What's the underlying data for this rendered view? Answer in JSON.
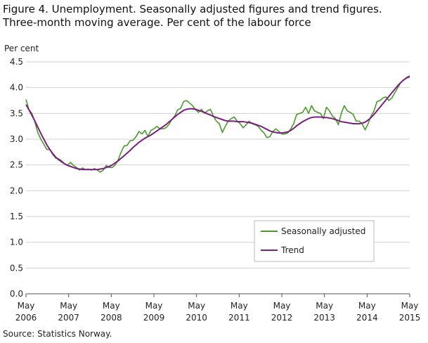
{
  "title_line1": "Figure 4. Unemployment. Seasonally adjusted figures and trend figures.",
  "title_line2": "Three-month moving average. Per cent of the labour force",
  "source": "Source: Statistics Norway.",
  "chart_data": {
    "type": "line",
    "ylabel": "Per cent",
    "ylim": [
      0,
      4.5
    ],
    "yticks": [
      "0.0",
      "0.5",
      "1.0",
      "1.5",
      "2.0",
      "2.5",
      "3.0",
      "3.5",
      "4.0",
      "4.5"
    ],
    "xticks": [
      {
        "month": "May",
        "year": "2006"
      },
      {
        "month": "May",
        "year": "2007"
      },
      {
        "month": "May",
        "year": "2008"
      },
      {
        "month": "May",
        "year": "2009"
      },
      {
        "month": "May",
        "year": "2010"
      },
      {
        "month": "May",
        "year": "2011"
      },
      {
        "month": "May",
        "year": "2012"
      },
      {
        "month": "May",
        "year": "2013"
      },
      {
        "month": "May",
        "year": "2014"
      },
      {
        "month": "May",
        "year": "2015"
      }
    ],
    "x_start": "2006-05",
    "x_end": "2015-05",
    "grid": "horizontal",
    "legend_position": "bottom-right",
    "series": [
      {
        "name": "Seasonally adjusted",
        "color": "#4a9a2a",
        "values": [
          3.77,
          3.57,
          3.5,
          3.33,
          3.12,
          3.0,
          2.9,
          2.8,
          2.8,
          2.7,
          2.63,
          2.62,
          2.58,
          2.52,
          2.5,
          2.55,
          2.49,
          2.45,
          2.4,
          2.44,
          2.41,
          2.42,
          2.4,
          2.43,
          2.4,
          2.36,
          2.4,
          2.49,
          2.45,
          2.45,
          2.5,
          2.6,
          2.75,
          2.87,
          2.88,
          2.97,
          2.98,
          3.05,
          3.15,
          3.1,
          3.17,
          3.05,
          3.17,
          3.2,
          3.25,
          3.2,
          3.2,
          3.22,
          3.28,
          3.38,
          3.45,
          3.57,
          3.6,
          3.73,
          3.75,
          3.7,
          3.65,
          3.57,
          3.52,
          3.58,
          3.5,
          3.55,
          3.58,
          3.45,
          3.35,
          3.3,
          3.13,
          3.25,
          3.35,
          3.4,
          3.43,
          3.35,
          3.3,
          3.22,
          3.28,
          3.35,
          3.3,
          3.28,
          3.25,
          3.18,
          3.12,
          3.03,
          3.05,
          3.15,
          3.2,
          3.15,
          3.1,
          3.1,
          3.12,
          3.2,
          3.3,
          3.48,
          3.5,
          3.52,
          3.62,
          3.5,
          3.65,
          3.55,
          3.52,
          3.5,
          3.4,
          3.62,
          3.55,
          3.45,
          3.4,
          3.28,
          3.5,
          3.65,
          3.55,
          3.52,
          3.48,
          3.35,
          3.35,
          3.3,
          3.18,
          3.3,
          3.45,
          3.55,
          3.73,
          3.75,
          3.8,
          3.82,
          3.75,
          3.8,
          3.9,
          4.0,
          4.1,
          4.15,
          4.2,
          4.23
        ]
      },
      {
        "name": "Trend",
        "color": "#7a1f7f",
        "values": [
          3.67,
          3.57,
          3.46,
          3.35,
          3.23,
          3.11,
          3.0,
          2.89,
          2.8,
          2.72,
          2.65,
          2.6,
          2.56,
          2.52,
          2.49,
          2.47,
          2.45,
          2.43,
          2.42,
          2.41,
          2.41,
          2.41,
          2.41,
          2.41,
          2.41,
          2.42,
          2.43,
          2.45,
          2.47,
          2.5,
          2.54,
          2.58,
          2.63,
          2.68,
          2.73,
          2.78,
          2.84,
          2.89,
          2.94,
          2.98,
          3.02,
          3.05,
          3.08,
          3.12,
          3.16,
          3.2,
          3.24,
          3.28,
          3.33,
          3.38,
          3.43,
          3.48,
          3.52,
          3.56,
          3.58,
          3.59,
          3.59,
          3.58,
          3.56,
          3.54,
          3.52,
          3.49,
          3.47,
          3.44,
          3.42,
          3.4,
          3.38,
          3.36,
          3.35,
          3.35,
          3.35,
          3.34,
          3.34,
          3.34,
          3.33,
          3.32,
          3.31,
          3.29,
          3.27,
          3.25,
          3.22,
          3.19,
          3.16,
          3.14,
          3.13,
          3.12,
          3.12,
          3.13,
          3.14,
          3.17,
          3.21,
          3.26,
          3.3,
          3.34,
          3.37,
          3.4,
          3.42,
          3.43,
          3.43,
          3.43,
          3.42,
          3.42,
          3.41,
          3.4,
          3.38,
          3.36,
          3.34,
          3.33,
          3.32,
          3.31,
          3.3,
          3.3,
          3.3,
          3.31,
          3.33,
          3.37,
          3.42,
          3.48,
          3.55,
          3.62,
          3.69,
          3.76,
          3.83,
          3.9,
          3.97,
          4.04,
          4.1,
          4.15,
          4.19,
          4.21
        ]
      }
    ]
  }
}
